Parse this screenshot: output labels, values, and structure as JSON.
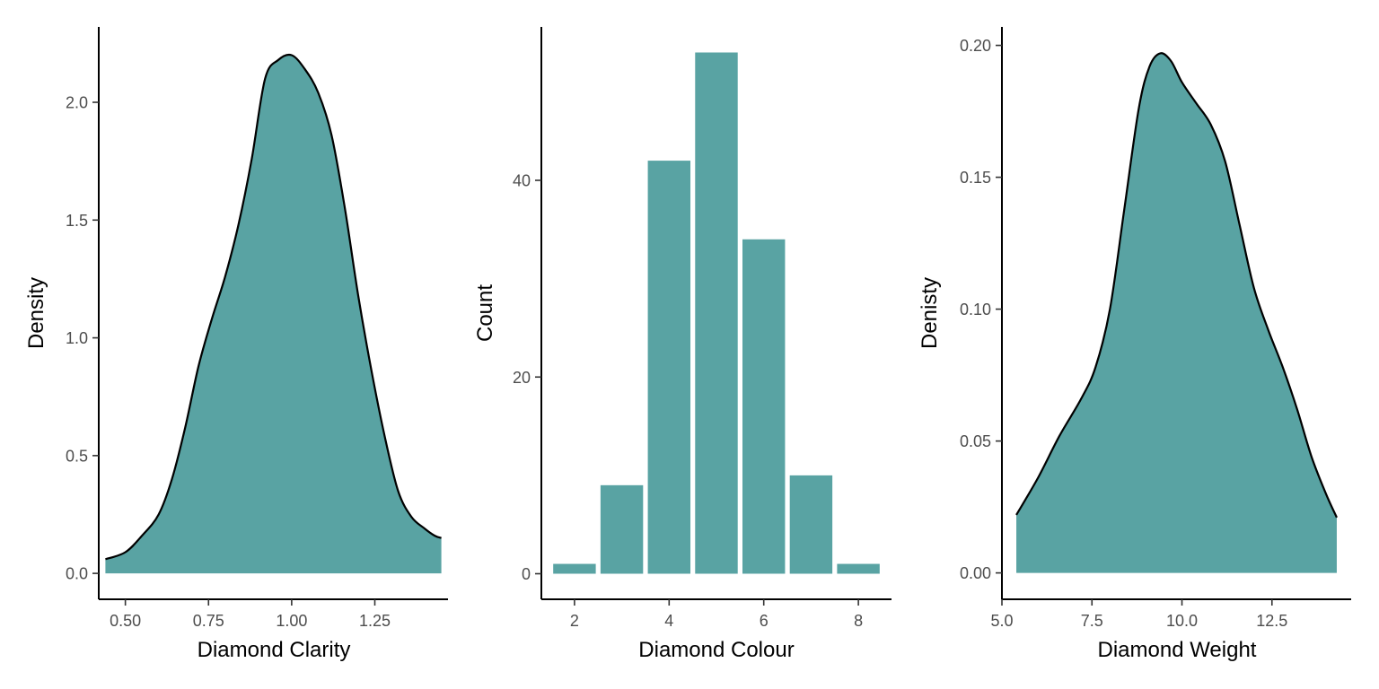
{
  "fill_color": "#59A3A3",
  "outline_color": "#000000",
  "chart_data": [
    {
      "type": "area",
      "xlabel": "Diamond Clarity",
      "ylabel": "Density",
      "xlim": [
        0.42,
        1.47
      ],
      "ylim": [
        -0.11,
        2.32
      ],
      "xticks": [
        0.5,
        0.75,
        1.0,
        1.25
      ],
      "xtick_labels": [
        "0.50",
        "0.75",
        "1.00",
        "1.25"
      ],
      "yticks": [
        0,
        0.5,
        1.0,
        1.5,
        2.0
      ],
      "ytick_labels": [
        "0.0",
        "0.5",
        "1.0",
        "1.5",
        "2.0"
      ],
      "grid": false,
      "x": [
        0.44,
        0.5,
        0.55,
        0.6,
        0.64,
        0.68,
        0.72,
        0.76,
        0.8,
        0.84,
        0.88,
        0.92,
        0.96,
        1.0,
        1.04,
        1.08,
        1.12,
        1.16,
        1.2,
        1.24,
        1.28,
        1.32,
        1.36,
        1.4,
        1.43,
        1.45
      ],
      "y": [
        0.06,
        0.09,
        0.16,
        0.25,
        0.4,
        0.62,
        0.88,
        1.08,
        1.26,
        1.48,
        1.76,
        2.1,
        2.18,
        2.2,
        2.14,
        2.04,
        1.86,
        1.55,
        1.18,
        0.86,
        0.58,
        0.35,
        0.24,
        0.19,
        0.16,
        0.15
      ]
    },
    {
      "type": "bar",
      "xlabel": "Diamond Colour",
      "ylabel": "Count",
      "xlim": [
        1.3,
        8.7
      ],
      "ylim": [
        -2.6,
        55.6
      ],
      "xticks": [
        2,
        4,
        6,
        8
      ],
      "xtick_labels": [
        "2",
        "4",
        "6",
        "8"
      ],
      "yticks": [
        0,
        20,
        40
      ],
      "ytick_labels": [
        "0",
        "20",
        "40"
      ],
      "grid": false,
      "categories": [
        2,
        3,
        4,
        5,
        6,
        7,
        8
      ],
      "values": [
        1,
        9,
        42,
        53,
        34,
        10,
        1
      ]
    },
    {
      "type": "area",
      "xlabel": "Diamond Weight",
      "ylabel": "Denisty",
      "xlim": [
        5.0,
        14.7
      ],
      "ylim": [
        -0.01,
        0.207
      ],
      "xticks": [
        5.0,
        7.5,
        10.0,
        12.5
      ],
      "xtick_labels": [
        "5.0",
        "7.5",
        "10.0",
        "12.5"
      ],
      "yticks": [
        0,
        0.05,
        0.1,
        0.15,
        0.2
      ],
      "ytick_labels": [
        "0.00",
        "0.05",
        "0.10",
        "0.15",
        "0.20"
      ],
      "grid": false,
      "x": [
        5.4,
        6.0,
        6.6,
        7.2,
        7.6,
        8.0,
        8.4,
        8.8,
        9.1,
        9.4,
        9.7,
        10.0,
        10.4,
        10.8,
        11.2,
        11.6,
        12.0,
        12.4,
        12.8,
        13.2,
        13.6,
        14.0,
        14.3
      ],
      "y": [
        0.022,
        0.036,
        0.052,
        0.066,
        0.078,
        0.1,
        0.138,
        0.176,
        0.192,
        0.197,
        0.194,
        0.186,
        0.178,
        0.17,
        0.156,
        0.132,
        0.108,
        0.092,
        0.078,
        0.062,
        0.044,
        0.03,
        0.021
      ]
    }
  ]
}
